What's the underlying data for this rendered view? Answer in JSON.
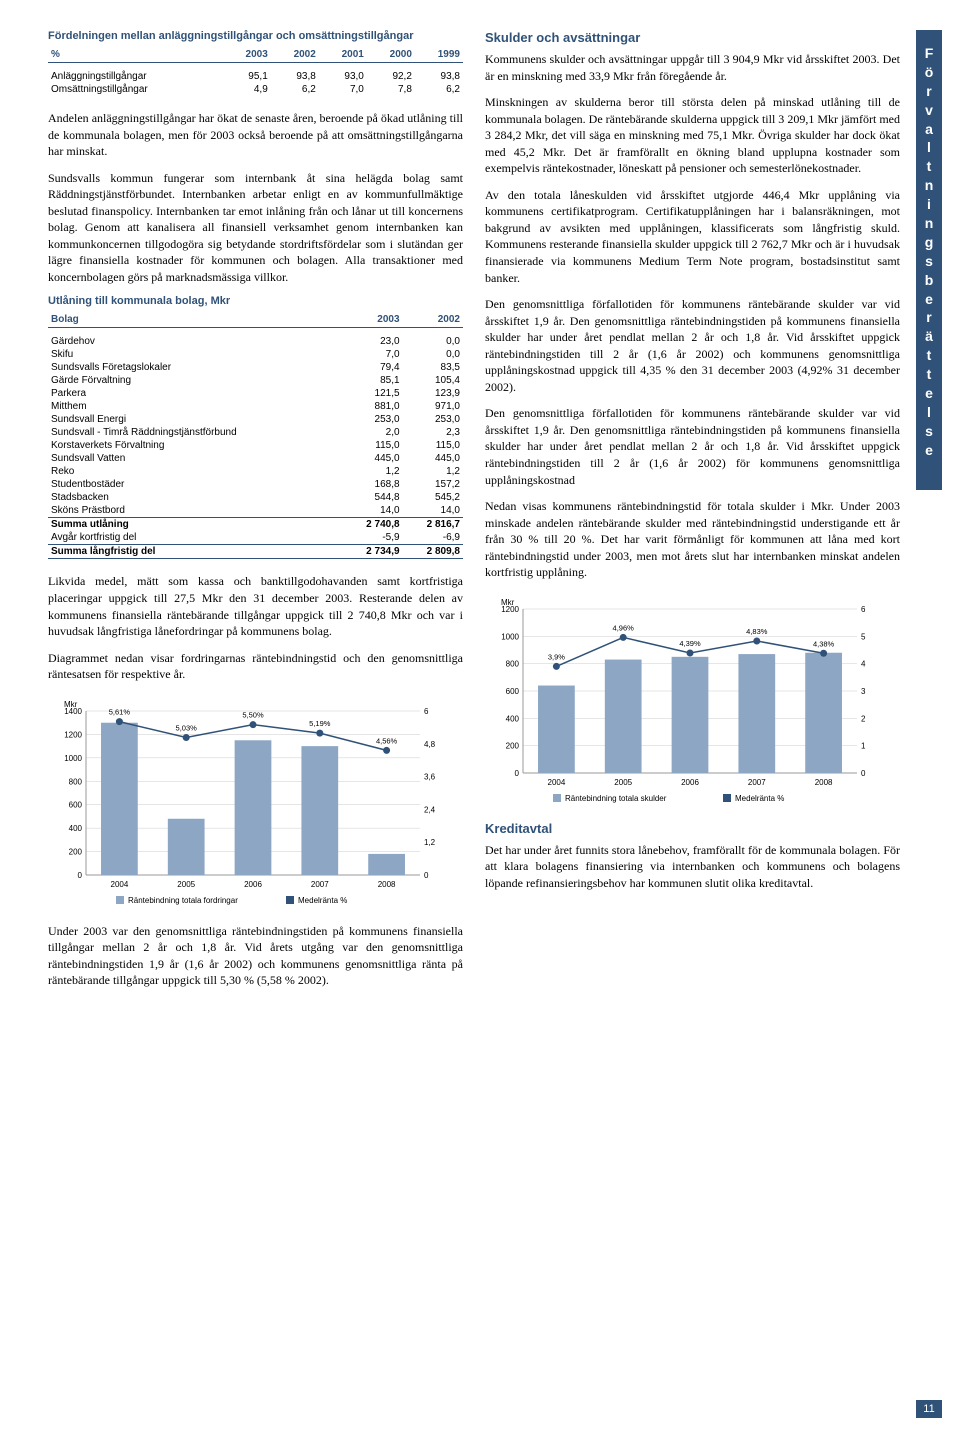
{
  "sidebar_letters": [
    "F",
    "ö",
    "r",
    "v",
    "a",
    "l",
    "t",
    "n",
    "i",
    "n",
    "g",
    "s",
    "b",
    "e",
    "r",
    "ä",
    "t",
    "t",
    "e",
    "l",
    "s",
    "e"
  ],
  "page_number": "11",
  "left": {
    "table1": {
      "title": "Fördelningen mellan anläggningstillgångar och omsättningstillgångar",
      "headers": [
        "%",
        "2003",
        "2002",
        "2001",
        "2000",
        "1999"
      ],
      "rows": [
        [
          "Anläggningstillgångar",
          "95,1",
          "93,8",
          "93,0",
          "92,2",
          "93,8"
        ],
        [
          "Omsättningstillgångar",
          "4,9",
          "6,2",
          "7,0",
          "7,8",
          "6,2"
        ]
      ]
    },
    "p1": "Andelen anläggningstillgångar har ökat de senaste åren, beroende på ökad utlåning till de kommunala bolagen, men för 2003 också beroende på att omsättningstillgångarna har minskat.",
    "p2": "Sundsvalls kommun fungerar som internbank åt sina helägda bolag samt Räddningstjänstförbundet. Internbanken arbetar enligt en av kommunfullmäktige beslutad finanspolicy. Internbanken tar emot inlåning från och lånar ut till koncernens bolag. Genom att kanalisera all finansiell verksamhet genom internbanken kan kommunkoncernen tillgodogöra sig betydande stordriftsfördelar som i slutändan ger lägre finansiella kostnader för kommunen och bolagen. Alla transaktioner med koncernbolagen görs på marknadsmässiga villkor.",
    "table2": {
      "title": "Utlåning till kommunala bolag, Mkr",
      "headers": [
        "Bolag",
        "2003",
        "2002"
      ],
      "rows": [
        [
          "Gärdehov",
          "23,0",
          "0,0"
        ],
        [
          "Skifu",
          "7,0",
          "0,0"
        ],
        [
          "Sundsvalls Företagslokaler",
          "79,4",
          "83,5"
        ],
        [
          "Gärde Förvaltning",
          "85,1",
          "105,4"
        ],
        [
          "Parkera",
          "121,5",
          "123,9"
        ],
        [
          "Mitthem",
          "881,0",
          "971,0"
        ],
        [
          "Sundsvall Energi",
          "253,0",
          "253,0"
        ],
        [
          "Sundsvall - Timrå Räddningstjänstförbund",
          "2,0",
          "2,3"
        ],
        [
          "Korstaverkets Förvaltning",
          "115,0",
          "115,0"
        ],
        [
          "Sundsvall Vatten",
          "445,0",
          "445,0"
        ],
        [
          "Reko",
          "1,2",
          "1,2"
        ],
        [
          "Studentbostäder",
          "168,8",
          "157,2"
        ],
        [
          "Stadsbacken",
          "544,8",
          "545,2"
        ],
        [
          "Sköns Prästbord",
          "14,0",
          "14,0"
        ]
      ],
      "sum1": [
        "Summa utlåning",
        "2 740,8",
        "2 816,7"
      ],
      "deduct": [
        "Avgår kortfristig del",
        "-5,9",
        "-6,9"
      ],
      "sum2": [
        "Summa långfristig del",
        "2 734,9",
        "2 809,8"
      ]
    },
    "p3": "Likvida medel, mätt som kassa och banktillgodohavanden samt kortfristiga placeringar uppgick till 27,5 Mkr den 31 december 2003. Resterande delen av kommunens finansiella räntebärande tillgångar uppgick till 2 740,8 Mkr och var i huvudsak långfristiga lånefordringar på kommunens bolag.",
    "p4": "Diagrammet nedan visar fordringarnas räntebindningstid och den genomsnittliga räntesatsen för respektive år.",
    "chart1": {
      "y_label": "Mkr",
      "y_max": 1400,
      "y_step": 200,
      "y2_max": 6.0,
      "y2_step": 1.2,
      "categories": [
        "2004",
        "2005",
        "2006",
        "2007",
        "2008"
      ],
      "bars": [
        1300,
        480,
        1150,
        1100,
        180
      ],
      "line_values": [
        5.61,
        5.03,
        5.5,
        5.19,
        4.56
      ],
      "line_labels": [
        "5,61%",
        "5,03%",
        "5,50%",
        "5,19%",
        "4,56%"
      ],
      "bar_color": "#8ca6c4",
      "line_color": "#305278",
      "legend": [
        "Räntebindning totala fordringar",
        "Medelränta %"
      ]
    },
    "p5": "Under 2003 var den genomsnittliga räntebindningstiden på kommunens finansiella tillgångar mellan 2 år och 1,8 år. Vid årets utgång var den genomsnittliga räntebindningstiden 1,9 år (1,6 år 2002) och kommunens genomsnittliga ränta på räntebärande tillgångar uppgick till 5,30 % (5,58 % 2002)."
  },
  "right": {
    "h1": "Skulder och avsättningar",
    "p1": "Kommunens skulder och avsättningar uppgår till 3 904,9 Mkr vid årsskiftet 2003. Det är en minskning med 33,9 Mkr från föregående år.",
    "p2": "Minskningen av skulderna beror till största delen på minskad utlåning till de kommunala bolagen. De räntebärande skulderna uppgick till 3 209,1 Mkr jämfört med 3 284,2 Mkr, det vill säga en minskning med 75,1 Mkr. Övriga skulder har dock ökat med 45,2 Mkr. Det är framförallt en ökning bland upplupna kostnader som exempelvis räntekostnader, löneskatt på pensioner och semesterlönekostnader.",
    "p3": "Av den totala låneskulden vid årsskiftet utgjorde 446,4 Mkr upplåning via kommunens certifikatprogram. Certifikatupplåningen har i balansräkningen, mot bakgrund av avsikten med upplåningen, klassificerats som långfristig skuld. Kommunens resterande finansiella skulder uppgick till 2 762,7 Mkr och är i huvudsak finansierade via kommunens Medium Term Note program, bostadsinstitut samt banker.",
    "p4": "Den genomsnittliga förfallotiden för kommunens räntebärande skulder var vid årsskiftet 1,9 år. Den genomsnittliga räntebindningstiden på kommunens finansiella skulder har under året pendlat mellan 2 år och 1,8 år. Vid årsskiftet uppgick räntebindningstiden till 2 år (1,6 år 2002) och kommunens genomsnittliga upplåningskostnad uppgick till 4,35 % den 31 december 2003 (4,92% 31 december 2002).",
    "p5": "Den genomsnittliga förfallotiden för kommunens räntebärande skulder var vid årsskiftet 1,9 år. Den genomsnittliga räntebindningstiden på kommunens finansiella skulder har under året pendlat mellan 2 år och 1,8 år. Vid årsskiftet uppgick räntebindningstiden till 2 år (1,6 år 2002) för kommunens genomsnittliga upplåningskostnad",
    "p6": "Nedan visas kommunens räntebindningstid för totala skulder i Mkr. Under 2003 minskade andelen räntebärande skulder med räntebindningstid understigande ett år från 30 % till 20 %. Det har varit förmånligt för kommunen att låna med kort räntebindningstid under 2003, men mot årets slut har internbanken minskat andelen kortfristig upplåning.",
    "chart2": {
      "y_label": "Mkr",
      "y_max": 1200,
      "y_step": 200,
      "y2_max": 6,
      "y2_step": 1,
      "categories": [
        "2004",
        "2005",
        "2006",
        "2007",
        "2008"
      ],
      "bars": [
        640,
        830,
        850,
        870,
        880
      ],
      "line_values": [
        3.9,
        4.96,
        4.39,
        4.83,
        4.38
      ],
      "line_labels": [
        "3,9%",
        "4,96%",
        "4,39%",
        "4,83%",
        "4,38%"
      ],
      "bar_color": "#8ca6c4",
      "line_color": "#305278",
      "legend": [
        "Räntebindning totala skulder",
        "Medelränta %"
      ]
    },
    "h2": "Kreditavtal",
    "p7": "Det har under året funnits stora lånebehov, framförallt för de kommunala bolagen. För att klara bolagens finansiering via internbanken och kommunens och bolagens löpande refinansieringsbehov har kommunen slutit olika kreditavtal."
  }
}
